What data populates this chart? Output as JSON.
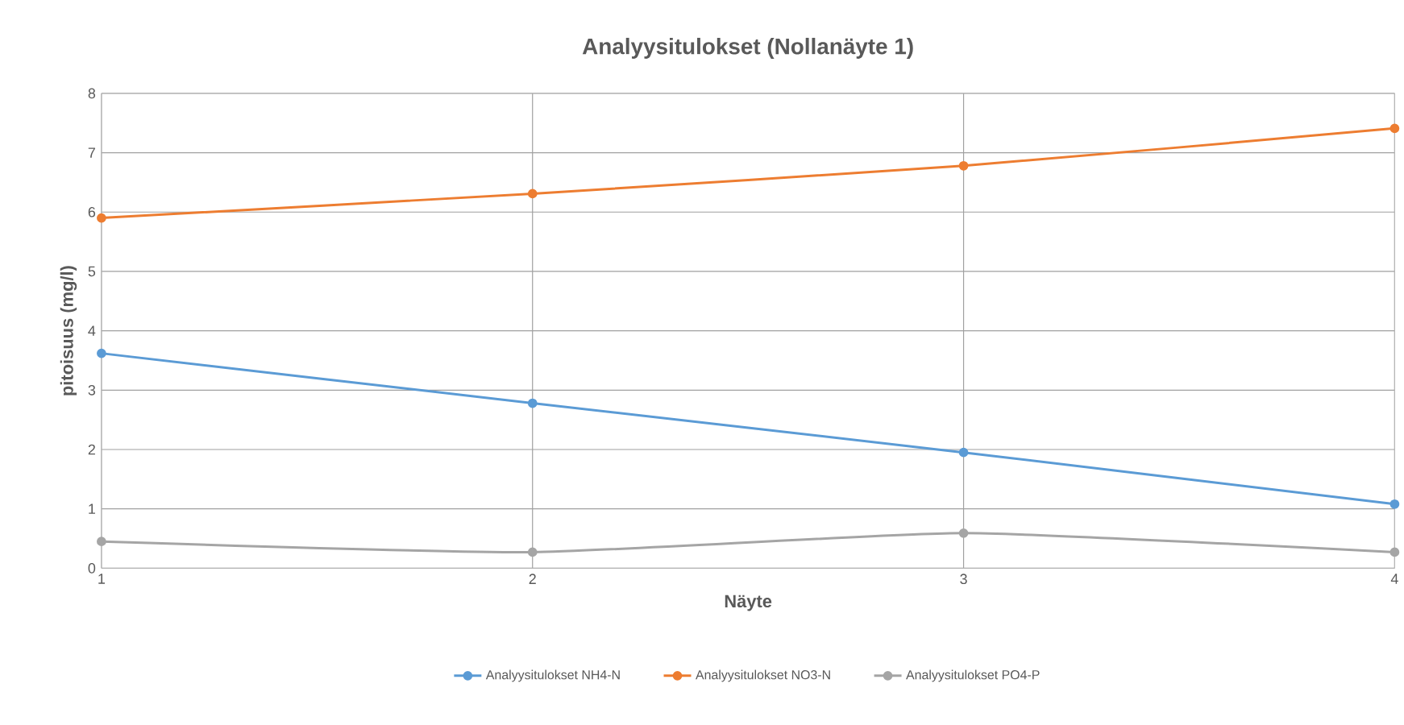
{
  "chart_data": {
    "type": "line",
    "title": "Analyysitulokset (Nollanäyte 1)",
    "xlabel": "Näyte",
    "ylabel": "pitoisuus (mg/l)",
    "x": [
      1,
      2,
      3,
      4
    ],
    "series": [
      {
        "name": "Analyysitulokset NH4-N",
        "color": "#5b9bd5",
        "values": [
          3.62,
          2.78,
          1.95,
          1.08
        ]
      },
      {
        "name": "Analyysitulokset NO3-N",
        "color": "#ed7d31",
        "values": [
          5.9,
          6.31,
          6.78,
          7.41
        ]
      },
      {
        "name": "Analyysitulokset PO4-P",
        "color": "#a5a5a5",
        "values": [
          0.45,
          0.27,
          0.59,
          0.27
        ]
      }
    ],
    "xlim": [
      1,
      4
    ],
    "xticks": [
      1,
      2,
      3,
      4
    ],
    "ylim": [
      0,
      8
    ],
    "yticks": [
      0,
      1,
      2,
      3,
      4,
      5,
      6,
      7,
      8
    ],
    "grid": true,
    "legend": "bottom",
    "marker": "circle",
    "line_style": "solid"
  }
}
